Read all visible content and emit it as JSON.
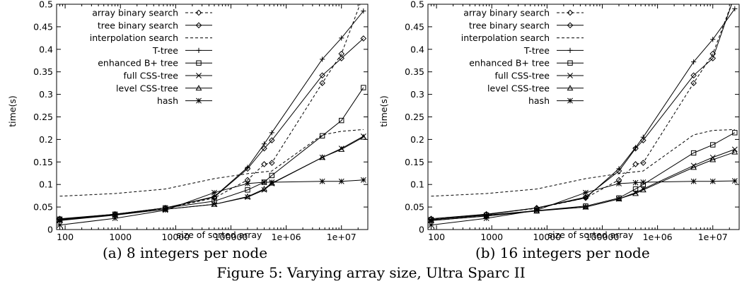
{
  "figure": {
    "caption": "Figure 5: Varying array size, Ultra Sparc II"
  },
  "chart_data": [
    {
      "type": "line",
      "caption": "(a) 8 integers per node",
      "xlabel": "size of sorted array",
      "ylabel": "time(s)",
      "xscale": "log",
      "xlim": [
        70,
        30000000
      ],
      "ylim": [
        0,
        0.5
      ],
      "xticks": [
        100,
        1000,
        10000,
        100000,
        1000000,
        10000000
      ],
      "xtick_labels": [
        "100",
        "1000",
        "10000",
        "100000",
        "1e+06",
        "1e+07"
      ],
      "yticks": [
        0,
        0.05,
        0.1,
        0.15,
        0.2,
        0.25,
        0.3,
        0.35,
        0.4,
        0.45,
        0.5
      ],
      "ytick_labels": [
        "0",
        "0.05",
        "0.1",
        "0.15",
        "0.2",
        "0.25",
        "0.3",
        "0.35",
        "0.4",
        "0.45",
        "0.5"
      ],
      "grid": false,
      "legend": "top-left",
      "series": [
        {
          "name": "array binary search",
          "marker": "diamond",
          "dash": "dashed",
          "x": [
            80,
            800,
            6500,
            50000,
            200000,
            400000,
            550000,
            4500000,
            10000000,
            25000000
          ],
          "y": [
            0.023,
            0.034,
            0.047,
            0.07,
            0.11,
            0.145,
            0.148,
            0.325,
            0.39,
            0.52
          ]
        },
        {
          "name": "tree binary search",
          "marker": "diamond",
          "dash": "solid",
          "x": [
            80,
            800,
            6500,
            50000,
            200000,
            400000,
            550000,
            4500000,
            10000000,
            25000000
          ],
          "y": [
            0.024,
            0.034,
            0.048,
            0.072,
            0.135,
            0.18,
            0.198,
            0.342,
            0.38,
            0.424
          ]
        },
        {
          "name": "interpolation search",
          "marker": "none",
          "dash": "dashed",
          "x": [
            80,
            800,
            6500,
            50000,
            200000,
            400000,
            550000,
            4500000,
            10000000,
            25000000
          ],
          "y": [
            0.074,
            0.08,
            0.09,
            0.113,
            0.124,
            0.128,
            0.13,
            0.21,
            0.218,
            0.222
          ]
        },
        {
          "name": "T-tree",
          "marker": "plus",
          "dash": "solid",
          "x": [
            80,
            800,
            6500,
            50000,
            200000,
            400000,
            550000,
            4500000,
            10000000,
            25000000
          ],
          "y": [
            0.022,
            0.033,
            0.048,
            0.073,
            0.138,
            0.19,
            0.215,
            0.378,
            0.425,
            0.485
          ]
        },
        {
          "name": "enhanced B+ tree",
          "marker": "square",
          "dash": "solid",
          "x": [
            80,
            800,
            6500,
            50000,
            200000,
            400000,
            550000,
            4500000,
            10000000,
            25000000
          ],
          "y": [
            0.023,
            0.034,
            0.048,
            0.063,
            0.088,
            0.105,
            0.12,
            0.208,
            0.242,
            0.315
          ]
        },
        {
          "name": "full CSS-tree",
          "marker": "x",
          "dash": "solid",
          "x": [
            80,
            800,
            6500,
            50000,
            200000,
            400000,
            550000,
            4500000,
            10000000,
            25000000
          ],
          "y": [
            0.02,
            0.032,
            0.045,
            0.056,
            0.072,
            0.088,
            0.102,
            0.16,
            0.18,
            0.207
          ]
        },
        {
          "name": "level CSS-tree",
          "marker": "triangle",
          "dash": "solid",
          "x": [
            80,
            800,
            6500,
            50000,
            200000,
            400000,
            550000,
            4500000,
            10000000,
            25000000
          ],
          "y": [
            0.021,
            0.033,
            0.045,
            0.056,
            0.073,
            0.09,
            0.103,
            0.16,
            0.178,
            0.205
          ]
        },
        {
          "name": "hash",
          "marker": "star",
          "dash": "solid",
          "x": [
            80,
            800,
            6500,
            50000,
            200000,
            400000,
            550000,
            4500000,
            10000000,
            25000000
          ],
          "y": [
            0.01,
            0.025,
            0.043,
            0.082,
            0.102,
            0.105,
            0.105,
            0.107,
            0.107,
            0.11
          ]
        }
      ]
    },
    {
      "type": "line",
      "caption": "(b) 16 integers per node",
      "xlabel": "size of sorted array",
      "ylabel": "time(s)",
      "xscale": "log",
      "xlim": [
        70,
        30000000
      ],
      "ylim": [
        0,
        0.5
      ],
      "xticks": [
        100,
        1000,
        10000,
        100000,
        1000000,
        10000000
      ],
      "xtick_labels": [
        "100",
        "1000",
        "10000",
        "100000",
        "1e+06",
        "1e+07"
      ],
      "yticks": [
        0,
        0.05,
        0.1,
        0.15,
        0.2,
        0.25,
        0.3,
        0.35,
        0.4,
        0.45,
        0.5
      ],
      "ytick_labels": [
        "0",
        "0.05",
        "0.1",
        "0.15",
        "0.2",
        "0.25",
        "0.3",
        "0.35",
        "0.4",
        "0.45",
        "0.5"
      ],
      "grid": false,
      "legend": "top-left",
      "series": [
        {
          "name": "array binary search",
          "marker": "diamond",
          "dash": "dashed",
          "x": [
            80,
            800,
            6500,
            50000,
            200000,
            400000,
            550000,
            4500000,
            10000000,
            25000000
          ],
          "y": [
            0.023,
            0.034,
            0.047,
            0.07,
            0.11,
            0.145,
            0.148,
            0.325,
            0.39,
            0.52
          ]
        },
        {
          "name": "tree binary search",
          "marker": "diamond",
          "dash": "solid",
          "x": [
            80,
            800,
            6500,
            50000,
            200000,
            400000,
            550000,
            4500000,
            10000000,
            25000000
          ],
          "y": [
            0.024,
            0.034,
            0.048,
            0.072,
            0.13,
            0.18,
            0.198,
            0.342,
            0.38,
            0.52
          ]
        },
        {
          "name": "interpolation search",
          "marker": "none",
          "dash": "dashed",
          "x": [
            80,
            800,
            6500,
            50000,
            200000,
            400000,
            550000,
            4500000,
            10000000,
            25000000
          ],
          "y": [
            0.074,
            0.08,
            0.09,
            0.113,
            0.124,
            0.128,
            0.13,
            0.21,
            0.22,
            0.222
          ]
        },
        {
          "name": "T-tree",
          "marker": "plus",
          "dash": "solid",
          "x": [
            80,
            800,
            6500,
            50000,
            200000,
            400000,
            550000,
            4500000,
            10000000,
            25000000
          ],
          "y": [
            0.022,
            0.033,
            0.048,
            0.07,
            0.135,
            0.182,
            0.205,
            0.372,
            0.422,
            0.49
          ]
        },
        {
          "name": "enhanced B+ tree",
          "marker": "square",
          "dash": "solid",
          "x": [
            80,
            800,
            6500,
            50000,
            200000,
            400000,
            550000,
            4500000,
            10000000,
            25000000
          ],
          "y": [
            0.022,
            0.032,
            0.042,
            0.052,
            0.07,
            0.09,
            0.1,
            0.17,
            0.188,
            0.215
          ]
        },
        {
          "name": "full CSS-tree",
          "marker": "x",
          "dash": "solid",
          "x": [
            80,
            800,
            6500,
            50000,
            200000,
            400000,
            550000,
            4500000,
            10000000,
            25000000
          ],
          "y": [
            0.02,
            0.03,
            0.042,
            0.05,
            0.068,
            0.082,
            0.09,
            0.142,
            0.16,
            0.178
          ]
        },
        {
          "name": "level CSS-tree",
          "marker": "triangle",
          "dash": "solid",
          "x": [
            80,
            800,
            6500,
            50000,
            200000,
            400000,
            550000,
            4500000,
            10000000,
            25000000
          ],
          "y": [
            0.02,
            0.03,
            0.041,
            0.05,
            0.068,
            0.08,
            0.088,
            0.138,
            0.155,
            0.172
          ]
        },
        {
          "name": "hash",
          "marker": "star",
          "dash": "solid",
          "x": [
            80,
            800,
            6500,
            50000,
            200000,
            400000,
            550000,
            4500000,
            10000000,
            25000000
          ],
          "y": [
            0.01,
            0.025,
            0.043,
            0.082,
            0.102,
            0.104,
            0.105,
            0.107,
            0.107,
            0.108
          ]
        }
      ]
    }
  ]
}
